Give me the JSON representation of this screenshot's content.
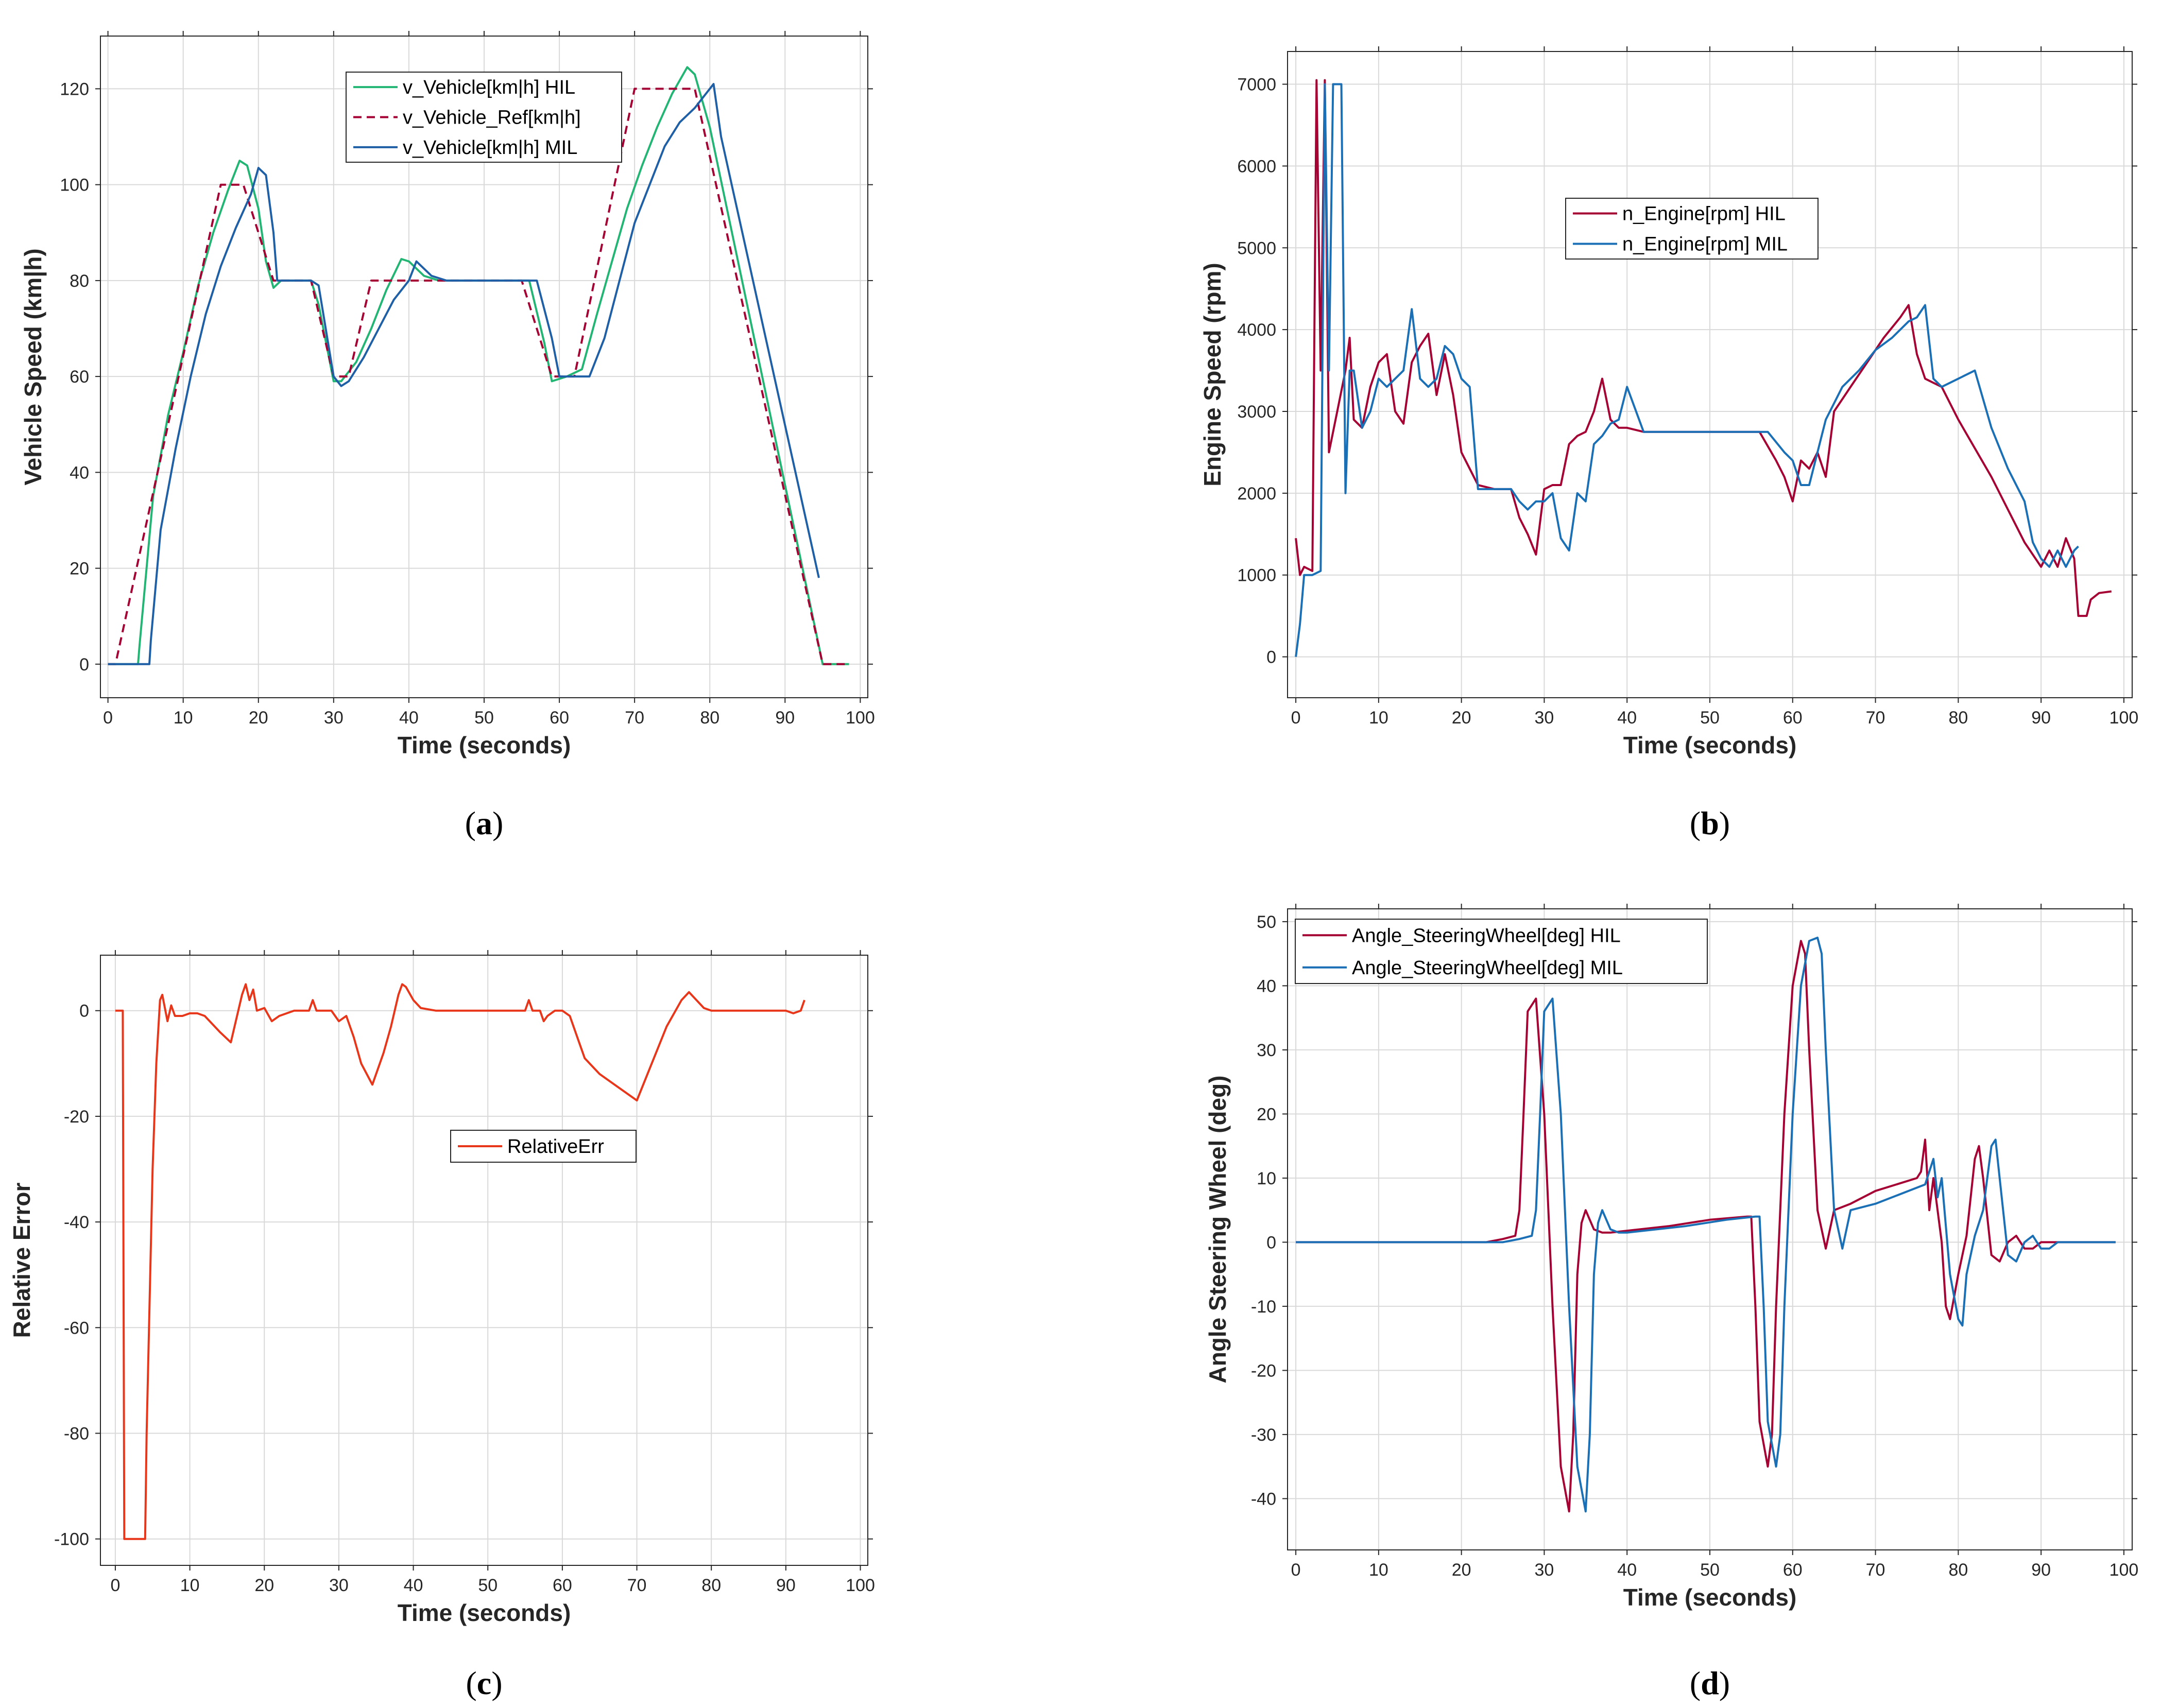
{
  "chart_data": [
    {
      "panel": "(a)",
      "caption_letter": "a",
      "type": "line",
      "xlabel": "Time (seconds)",
      "ylabel": "Vehicle Speed (km|h)",
      "xlim": [
        -1,
        101
      ],
      "ylim": [
        -7,
        131
      ],
      "xticks": [
        0,
        10,
        20,
        30,
        40,
        50,
        60,
        70,
        80,
        90,
        100
      ],
      "yticks": [
        0,
        20,
        40,
        60,
        80,
        100,
        120
      ],
      "legend_position": "top-center",
      "series": [
        {
          "name": "v_Vehicle[km|h] HIL",
          "color": "#22b573",
          "dash": "",
          "x": [
            0,
            4,
            4.2,
            6,
            8,
            10,
            12,
            14,
            16,
            17.5,
            18.5,
            20,
            21,
            22,
            23,
            25,
            27,
            28,
            30,
            31,
            33,
            35,
            37,
            39,
            40,
            42,
            44,
            56,
            58,
            59,
            61,
            63,
            65,
            67,
            69,
            71,
            73,
            75,
            77,
            78,
            80,
            95,
            96,
            98.5
          ],
          "y": [
            0,
            0,
            4,
            35,
            52,
            65,
            79,
            90,
            99,
            105,
            104,
            95,
            84,
            78.5,
            80,
            80,
            80,
            75,
            59,
            59,
            63,
            70,
            78,
            84.5,
            84,
            81,
            80,
            80,
            67,
            59,
            60,
            61.5,
            73,
            84,
            95,
            104,
            112,
            119,
            124.5,
            123,
            112,
            0,
            0,
            0
          ]
        },
        {
          "name": "v_Vehicle_Ref[km|h]",
          "color": "#a50034",
          "dash": "16,10",
          "x": [
            0,
            1,
            15,
            18,
            22,
            27,
            30,
            32,
            35,
            55,
            59,
            62,
            70,
            78,
            95,
            98.5
          ],
          "y": [
            0,
            0,
            100,
            100,
            80,
            80,
            60,
            60,
            80,
            80,
            60,
            60,
            120,
            120,
            0,
            0
          ]
        },
        {
          "name": "v_Vehicle[km|h] MIL",
          "color": "#1f5fa6",
          "dash": "",
          "x": [
            0,
            5.5,
            5.7,
            7,
            9,
            11,
            13,
            15,
            17,
            19,
            20,
            21,
            22,
            22.5,
            24,
            27,
            28,
            30,
            31,
            32,
            34,
            36,
            38,
            40,
            41,
            43,
            45,
            57,
            59,
            60,
            62,
            64,
            66,
            68,
            70,
            72,
            74,
            76,
            78,
            80.5,
            81.5,
            94.5
          ],
          "y": [
            0,
            0,
            5,
            28,
            45,
            60,
            73,
            83,
            91,
            98,
            103.5,
            102,
            90,
            80,
            80,
            80,
            79,
            60,
            58,
            59,
            64,
            70,
            76,
            80,
            84,
            81,
            80,
            80,
            68,
            60,
            60,
            60,
            68,
            80,
            92,
            100,
            108,
            113,
            116,
            121,
            110,
            18
          ]
        }
      ]
    },
    {
      "panel": "(b)",
      "caption_letter": "b",
      "type": "line",
      "xlabel": "Time (seconds)",
      "ylabel": "Engine Speed (rpm)",
      "xlim": [
        -1,
        101
      ],
      "ylim": [
        -500,
        7400
      ],
      "xticks": [
        0,
        10,
        20,
        30,
        40,
        50,
        60,
        70,
        80,
        90,
        100
      ],
      "yticks": [
        0,
        1000,
        2000,
        3000,
        4000,
        5000,
        6000,
        7000
      ],
      "legend_position": "top-center",
      "series": [
        {
          "name": "n_Engine[rpm] HIL",
          "color": "#a50034",
          "dash": "",
          "x": [
            0,
            0.5,
            1,
            2,
            2.5,
            3,
            3.5,
            4,
            5,
            6,
            6.5,
            7,
            8,
            9,
            10,
            11,
            12,
            13,
            14,
            15,
            16,
            17,
            18,
            19,
            20,
            21,
            22,
            24,
            26,
            27,
            28,
            29,
            30,
            31,
            32,
            33,
            34,
            35,
            36,
            37,
            38,
            39,
            40,
            42,
            44,
            56,
            58,
            59,
            60,
            61,
            62,
            63,
            64,
            65,
            67,
            69,
            71,
            73,
            74,
            75,
            76,
            77,
            78,
            80,
            82,
            84,
            86,
            88,
            90,
            91,
            92,
            93,
            94,
            94.5,
            95.5,
            96,
            97,
            98.5
          ],
          "y": [
            1450,
            1000,
            1100,
            1050,
            7050,
            3500,
            7050,
            2500,
            3000,
            3500,
            3900,
            2900,
            2800,
            3300,
            3600,
            3700,
            3000,
            2850,
            3600,
            3800,
            3950,
            3200,
            3700,
            3200,
            2500,
            2300,
            2100,
            2050,
            2050,
            1700,
            1500,
            1250,
            2050,
            2100,
            2100,
            2600,
            2700,
            2750,
            3000,
            3400,
            2900,
            2800,
            2800,
            2750,
            2750,
            2750,
            2400,
            2200,
            1900,
            2400,
            2300,
            2500,
            2200,
            3000,
            3300,
            3600,
            3900,
            4150,
            4300,
            3700,
            3400,
            3350,
            3300,
            2900,
            2550,
            2200,
            1800,
            1400,
            1100,
            1300,
            1100,
            1450,
            1200,
            500,
            500,
            700,
            780,
            800
          ]
        },
        {
          "name": "n_Engine[rpm] MIL",
          "color": "#1a6fb5",
          "dash": "",
          "x": [
            0,
            0.5,
            1,
            2,
            3,
            3.5,
            4,
            4.5,
            5,
            5.5,
            6,
            6.5,
            7,
            8,
            9,
            10,
            11,
            12,
            13,
            14,
            15,
            16,
            17,
            18,
            19,
            20,
            21,
            22,
            24,
            26,
            27,
            28,
            29,
            30,
            31,
            32,
            33,
            34,
            35,
            36,
            37,
            38,
            39,
            40,
            42,
            44,
            57,
            59,
            60,
            61,
            62,
            63,
            64,
            65,
            66,
            68,
            70,
            72,
            74,
            75,
            76,
            77,
            78,
            80,
            82,
            84,
            86,
            88,
            89,
            90,
            91,
            92,
            93,
            94,
            94.5
          ],
          "y": [
            0,
            400,
            1000,
            1000,
            1050,
            7000,
            3500,
            7000,
            7000,
            7000,
            2000,
            3500,
            3500,
            2800,
            3000,
            3400,
            3300,
            3400,
            3500,
            4250,
            3400,
            3300,
            3400,
            3800,
            3700,
            3400,
            3300,
            2050,
            2050,
            2050,
            1900,
            1800,
            1900,
            1900,
            2000,
            1450,
            1300,
            2000,
            1900,
            2600,
            2700,
            2850,
            2900,
            3300,
            2750,
            2750,
            2750,
            2500,
            2400,
            2100,
            2100,
            2500,
            2900,
            3100,
            3300,
            3500,
            3750,
            3900,
            4100,
            4150,
            4300,
            3400,
            3300,
            3400,
            3500,
            2800,
            2300,
            1900,
            1400,
            1200,
            1100,
            1300,
            1100,
            1300,
            1350
          ]
        }
      ]
    },
    {
      "panel": "(c)",
      "caption_letter": "c",
      "type": "line",
      "xlabel": "Time (seconds)",
      "ylabel": "Relative Error",
      "xlim": [
        -2,
        101
      ],
      "ylim": [
        -105,
        10.5
      ],
      "xticks": [
        0,
        10,
        20,
        30,
        40,
        50,
        60,
        70,
        80,
        90,
        100
      ],
      "yticks": [
        0,
        -20,
        -40,
        -60,
        -80,
        -100
      ],
      "legend_position": "center",
      "series": [
        {
          "name": "RelativeErr",
          "color": "#e8361a",
          "dash": "",
          "x": [
            0,
            1,
            1.2,
            4,
            4.2,
            5,
            5.5,
            6,
            6.3,
            7,
            7.5,
            8,
            9,
            10,
            11,
            12,
            14,
            15.5,
            17,
            17.5,
            18,
            18.5,
            19,
            20,
            21,
            22,
            24,
            26,
            26.5,
            27,
            28,
            29,
            30,
            31,
            32,
            33,
            34.5,
            36,
            37,
            38,
            38.5,
            39,
            40,
            41,
            43,
            45,
            55,
            55.5,
            56,
            57,
            57.5,
            58,
            59,
            60,
            61,
            62,
            63,
            65,
            67,
            70,
            72,
            74,
            76,
            77,
            78,
            79,
            80,
            85,
            90,
            91,
            92,
            92.5
          ],
          "y": [
            0,
            0,
            -100,
            -100,
            -80,
            -30,
            -10,
            2,
            3,
            -2,
            1,
            -1,
            -1,
            -0.5,
            -0.5,
            -1,
            -4,
            -6,
            3,
            5,
            2,
            4,
            0,
            0.5,
            -2,
            -1,
            0,
            0,
            2,
            0,
            0,
            0,
            -2,
            -1,
            -5,
            -10,
            -14,
            -8,
            -3,
            3,
            5,
            4.5,
            2,
            0.5,
            0,
            0,
            0,
            2,
            0,
            0,
            -2,
            -1,
            0,
            0,
            -1,
            -5,
            -9,
            -12,
            -14,
            -17,
            -10,
            -3,
            2,
            3.5,
            2,
            0.5,
            0,
            0,
            0,
            -0.5,
            0,
            2
          ]
        }
      ]
    },
    {
      "panel": "(d)",
      "caption_letter": "d",
      "type": "line",
      "xlabel": "Time (seconds)",
      "ylabel": "Angle Steering Wheel (deg)",
      "xlim": [
        -1,
        101
      ],
      "ylim": [
        -48,
        52
      ],
      "xticks": [
        0,
        10,
        20,
        30,
        40,
        50,
        60,
        70,
        80,
        90,
        100
      ],
      "yticks": [
        50,
        40,
        30,
        20,
        10,
        0,
        -10,
        -20,
        -30,
        -40
      ],
      "legend_position": "top-left",
      "series": [
        {
          "name": "Angle_SteeringWheel[deg] HIL",
          "color": "#a50034",
          "dash": "",
          "x": [
            0,
            23,
            25,
            26.5,
            27,
            27.5,
            28,
            29,
            30,
            31,
            32,
            33,
            33.5,
            34,
            34.5,
            35,
            36,
            37,
            38,
            45,
            50,
            54.5,
            55,
            55.5,
            56,
            57,
            57.5,
            58,
            59,
            60,
            61,
            61.5,
            62,
            63,
            64,
            65,
            67,
            70,
            75,
            75.5,
            76,
            76.5,
            77,
            78,
            78.5,
            79,
            80,
            81,
            82,
            82.5,
            83,
            84,
            85,
            86,
            87,
            88,
            89,
            90,
            91,
            92,
            99
          ],
          "y": [
            0,
            0,
            0.5,
            1,
            5,
            20,
            36,
            38,
            20,
            -10,
            -35,
            -42,
            -30,
            -5,
            3,
            5,
            2,
            1.5,
            1.5,
            2.5,
            3.5,
            4,
            4,
            -10,
            -28,
            -35,
            -30,
            -10,
            20,
            40,
            47,
            45,
            30,
            5,
            -1,
            5,
            6,
            8,
            10,
            11,
            16,
            5,
            10,
            0,
            -10,
            -12,
            -5,
            1,
            13,
            15,
            10,
            -2,
            -3,
            0,
            1,
            -1,
            -1,
            0,
            0,
            0,
            0
          ]
        },
        {
          "name": "Angle_SteeringWheel[deg] MIL",
          "color": "#1a6fb5",
          "dash": "",
          "x": [
            0,
            25,
            27,
            28.5,
            29,
            29.5,
            30,
            31,
            32,
            33,
            34,
            35,
            35.5,
            36,
            36.5,
            37,
            38,
            39,
            40,
            47,
            52,
            55.5,
            56,
            56.5,
            57,
            58,
            58.5,
            59,
            60,
            61,
            62,
            63,
            63.5,
            64,
            65,
            66,
            67,
            70,
            74,
            76,
            77,
            77.5,
            78,
            79,
            80,
            80.5,
            81,
            82,
            83,
            84,
            84.5,
            85,
            86,
            87,
            88,
            89,
            90,
            91,
            92,
            99
          ],
          "y": [
            0,
            0,
            0.5,
            1,
            5,
            20,
            36,
            38,
            20,
            -10,
            -35,
            -42,
            -30,
            -5,
            3,
            5,
            2,
            1.5,
            1.5,
            2.5,
            3.5,
            4,
            4,
            -10,
            -28,
            -35,
            -30,
            -10,
            20,
            40,
            47,
            47.5,
            45,
            30,
            5,
            -1,
            5,
            6,
            8,
            9,
            13,
            7,
            10,
            -5,
            -12,
            -13,
            -5,
            1,
            5,
            15,
            16,
            10,
            -2,
            -3,
            0,
            1,
            -1,
            -1,
            0,
            0
          ]
        }
      ]
    }
  ]
}
